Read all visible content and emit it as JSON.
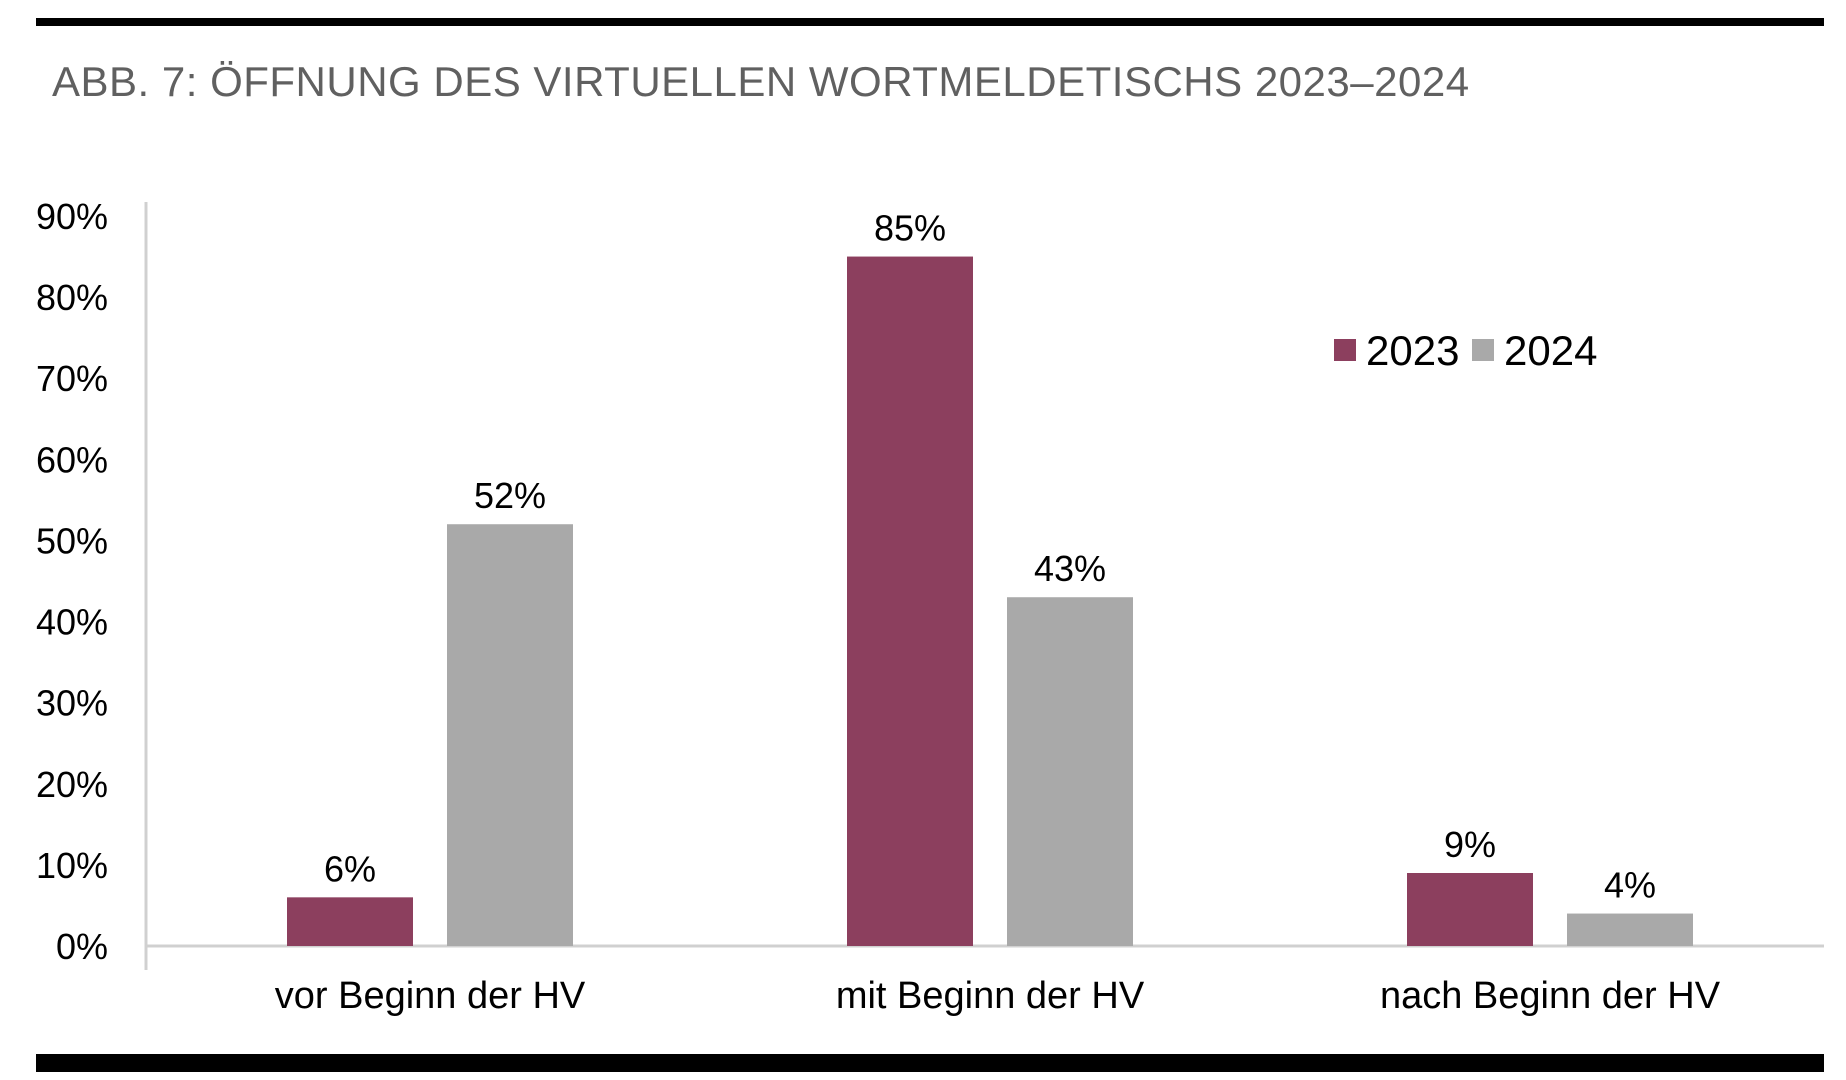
{
  "chart_data": {
    "type": "bar",
    "title": "ABB. 7: ÖFFNUNG DES VIRTUELLEN WORTMELDETISCHS 2023–2024",
    "categories": [
      "vor Beginn der HV",
      "mit Beginn der HV",
      "nach Beginn der HV"
    ],
    "series": [
      {
        "name": "2023",
        "values": [
          6,
          85,
          9
        ],
        "labels": [
          "6%",
          "85%",
          "9%"
        ],
        "color": "#8c3f5e"
      },
      {
        "name": "2024",
        "values": [
          52,
          43,
          4
        ],
        "labels": [
          "52%",
          "43%",
          "4%"
        ],
        "color": "#a9a9a9"
      }
    ],
    "y_ticks": [
      "0%",
      "10%",
      "20%",
      "30%",
      "40%",
      "50%",
      "60%",
      "70%",
      "80%",
      "90%"
    ],
    "ylim": [
      0,
      90
    ],
    "grid": false,
    "legend_position": "top-right"
  }
}
